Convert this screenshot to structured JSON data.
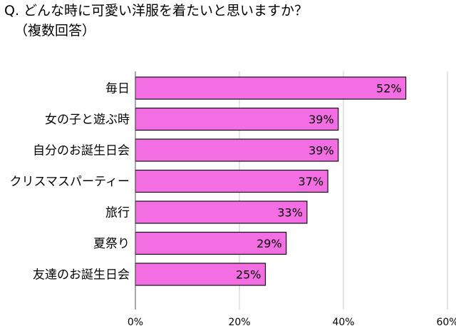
{
  "chart": {
    "title": "Q. どんな時に可愛い洋服を着たいと思いますか？",
    "subtitle": "（複数回答）"
  },
  "chart_data": {
    "type": "bar",
    "orientation": "horizontal",
    "title": "Q. どんな時に可愛い洋服を着たいと思いますか？",
    "subtitle": "（複数回答）",
    "categories": [
      "毎日",
      "女の子と遊ぶ時",
      "自分のお誕生日会",
      "クリスマスパーティー",
      "旅行",
      "夏祭り",
      "友達のお誕生日会"
    ],
    "values": [
      52,
      39,
      39,
      37,
      33,
      29,
      25
    ],
    "value_labels": [
      "52%",
      "39%",
      "39%",
      "37%",
      "33%",
      "29%",
      "25%"
    ],
    "xlim": [
      0,
      60
    ],
    "ticks": [
      0,
      20,
      40,
      60
    ],
    "tick_labels": [
      "0%",
      "20%",
      "40%",
      "60%"
    ],
    "grid": true,
    "bar_color": "#f26ee2",
    "bar_edge_color": "#111111",
    "grid_color": "#c8c8c8"
  }
}
